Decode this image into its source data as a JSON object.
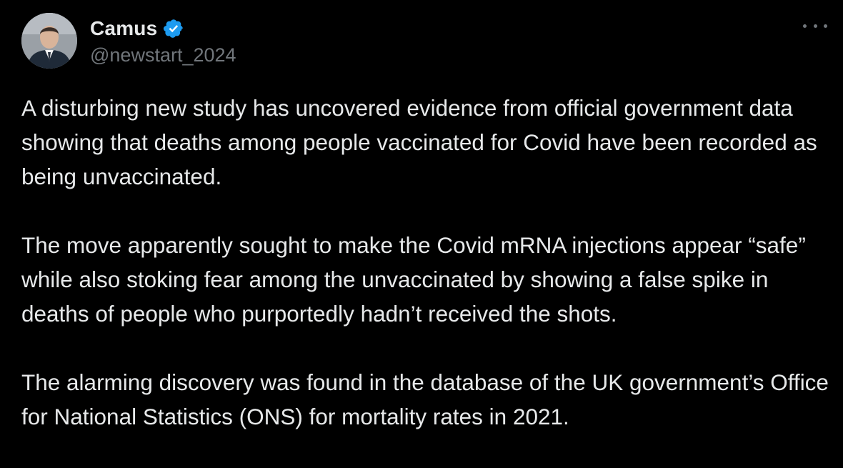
{
  "author": {
    "display_name": "Camus",
    "handle": "@newstart_2024",
    "verified": true
  },
  "icons": {
    "verified": "verified-badge-icon",
    "more": "more-options-icon"
  },
  "colors": {
    "background": "#000000",
    "text": "#e7e9ea",
    "secondary_text": "#71767b",
    "verified_blue": "#1d9bf0"
  },
  "post": {
    "paragraphs": [
      "A disturbing new study has uncovered evidence from official government data showing that deaths among people vaccinated for Covid have been recorded as being unvaccinated.",
      "The move apparently sought to make the Covid mRNA injections appear “safe” while also stoking fear among the unvaccinated by showing a false spike in deaths of people who purportedly hadn’t received the shots.",
      "The alarming discovery was found in the database of the UK government’s Office for National Statistics (ONS) for mortality rates in 2021."
    ]
  }
}
